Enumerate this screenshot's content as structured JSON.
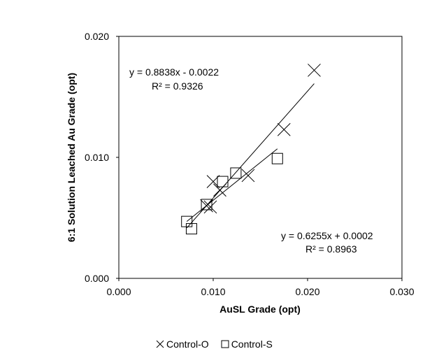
{
  "chart_data": {
    "type": "scatter",
    "xlabel": "AuSL Grade (opt)",
    "ylabel": "6:1 Solution Leached Au Grade (opt)",
    "xlim": [
      0,
      0.03
    ],
    "ylim": [
      0,
      0.02
    ],
    "x_ticks": [
      "0.000",
      "0.010",
      "0.020",
      "0.030"
    ],
    "y_ticks": [
      "0.000",
      "0.010",
      "0.020"
    ],
    "grid": false,
    "legend_position": "bottom",
    "series": [
      {
        "name": "Control-O",
        "marker": "x",
        "color": "#000000",
        "points": [
          [
            0.0093,
            0.006
          ],
          [
            0.0097,
            0.0059
          ],
          [
            0.01,
            0.008
          ],
          [
            0.0107,
            0.0073
          ],
          [
            0.0137,
            0.0085
          ],
          [
            0.0175,
            0.0123
          ],
          [
            0.0207,
            0.0172
          ]
        ],
        "trendline": {
          "label": "y = 0.8838x  - 0.0022",
          "r2_label": "R² = 0.9326",
          "slope": 0.8838,
          "intercept": -0.0022,
          "x_range": [
            0.0072,
            0.0207
          ]
        }
      },
      {
        "name": "Control-S",
        "marker": "square",
        "color": "#000000",
        "points": [
          [
            0.0072,
            0.0047
          ],
          [
            0.0077,
            0.0041
          ],
          [
            0.0093,
            0.0061
          ],
          [
            0.011,
            0.008
          ],
          [
            0.0124,
            0.0087
          ],
          [
            0.0168,
            0.0099
          ]
        ],
        "trendline": {
          "label": "y = 0.6255x  + 0.0002",
          "r2_label": "R² = 0.8963",
          "slope": 0.6255,
          "intercept": 0.0002,
          "x_range": [
            0.0072,
            0.0168
          ]
        }
      }
    ]
  }
}
